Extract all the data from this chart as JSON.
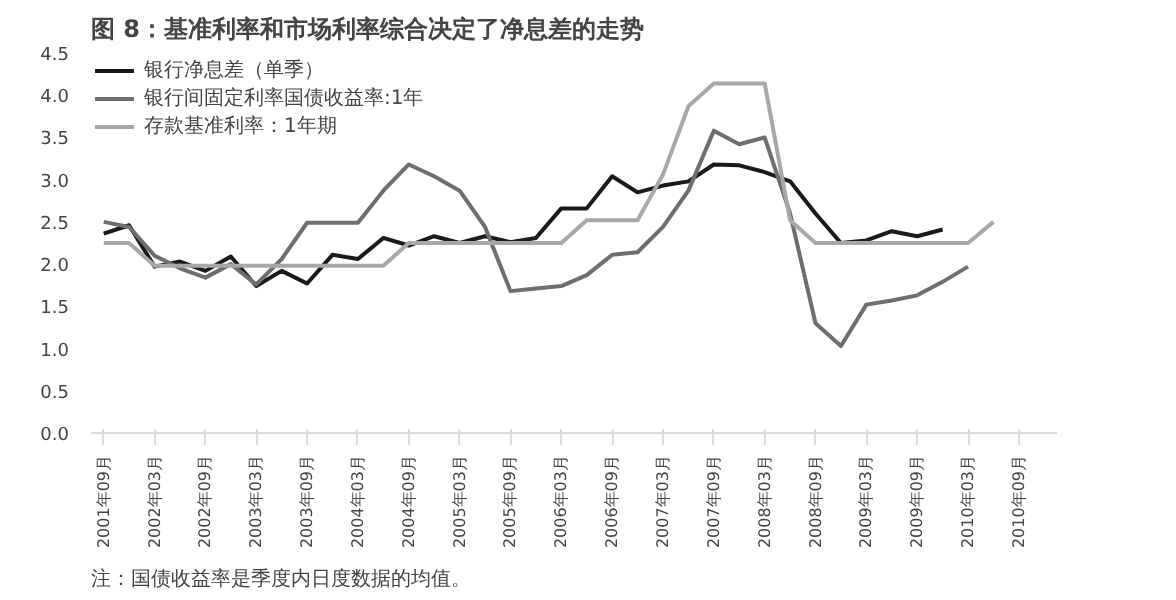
{
  "chart_data": {
    "type": "line",
    "title": "图 8：基准利率和市场利率综合决定了净息差的走势",
    "categories": [
      "2001年09月",
      null,
      "2002年03月",
      null,
      "2002年09月",
      null,
      "2003年03月",
      null,
      "2003年09月",
      null,
      "2004年03月",
      null,
      "2004年09月",
      null,
      "2005年03月",
      null,
      "2005年09月",
      null,
      "2006年03月",
      null,
      "2006年09月",
      null,
      "2007年03月",
      null,
      "2007年09月",
      null,
      "2008年03月",
      null,
      "2008年09月",
      null,
      "2009年03月",
      null,
      "2009年09月",
      null,
      "2010年03月",
      null,
      "2010年09月",
      null
    ],
    "series": [
      {
        "name": "银行净息差（单季）",
        "color": "#1a1a1a",
        "values": [
          2.36,
          2.46,
          1.97,
          2.03,
          1.92,
          2.09,
          1.74,
          1.92,
          1.77,
          2.11,
          2.06,
          2.31,
          2.22,
          2.33,
          2.25,
          2.33,
          2.26,
          2.31,
          2.66,
          2.66,
          3.04,
          2.85,
          2.93,
          2.98,
          3.18,
          3.17,
          3.09,
          2.98,
          2.6,
          2.25,
          2.28,
          2.39,
          2.33,
          2.41,
          null,
          null,
          null,
          null
        ]
      },
      {
        "name": "银行间固定利率国债收益率:1年",
        "color": "#6e6e6e",
        "values": [
          2.5,
          2.44,
          2.1,
          1.95,
          1.84,
          2.0,
          1.76,
          2.06,
          2.49,
          2.49,
          2.49,
          2.87,
          3.18,
          3.04,
          2.87,
          2.44,
          1.68,
          1.71,
          1.74,
          1.87,
          2.11,
          2.14,
          2.44,
          2.87,
          3.58,
          3.42,
          3.5,
          2.6,
          1.3,
          1.03,
          1.52,
          1.57,
          1.63,
          1.79,
          1.97,
          null,
          null,
          null
        ]
      },
      {
        "name": "存款基准利率：1年期",
        "color": "#a8a8a8",
        "values": [
          2.25,
          2.25,
          1.98,
          1.98,
          1.98,
          1.98,
          1.98,
          1.98,
          1.98,
          1.98,
          1.98,
          1.98,
          2.25,
          2.25,
          2.25,
          2.25,
          2.25,
          2.25,
          2.25,
          2.52,
          2.52,
          2.52,
          3.06,
          3.87,
          4.14,
          4.14,
          4.14,
          2.52,
          2.25,
          2.25,
          2.25,
          2.25,
          2.25,
          2.25,
          2.25,
          2.5,
          null,
          null
        ]
      }
    ],
    "ylim": [
      0,
      4.5
    ],
    "yticks": [
      {
        "value": 0,
        "label": "0.0"
      },
      {
        "value": 0.5,
        "label": "0.5"
      },
      {
        "value": 1,
        "label": "1.0"
      },
      {
        "value": 1.5,
        "label": "1.5"
      },
      {
        "value": 2,
        "label": "2.0"
      },
      {
        "value": 2.5,
        "label": "2.5"
      },
      {
        "value": 3,
        "label": "3.0"
      },
      {
        "value": 3.5,
        "label": "3.5"
      },
      {
        "value": 4,
        "label": "4.0"
      },
      {
        "value": 4.5,
        "label": "4.5"
      }
    ],
    "legend": "top left",
    "grid": false,
    "marker": "none",
    "line_style": "solid",
    "annotations": [
      "注：国债收益率是季度内日度数据的均值。"
    ]
  }
}
